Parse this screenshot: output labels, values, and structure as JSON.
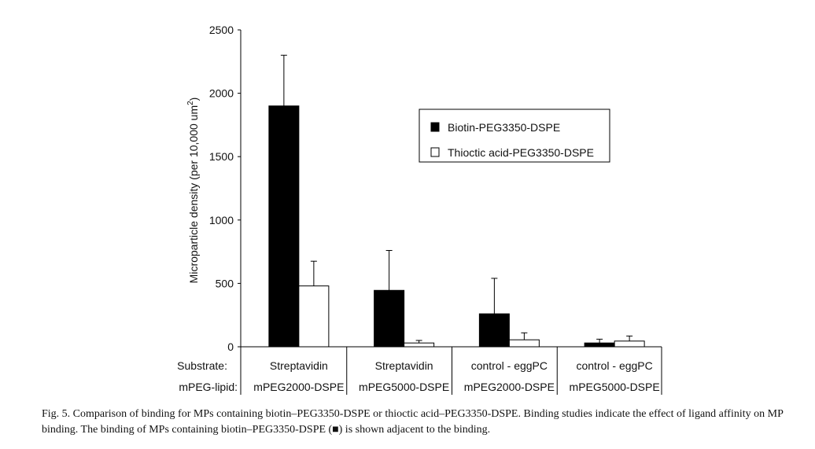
{
  "chart_data": {
    "type": "bar",
    "title": "",
    "ylabel": "Microparticle density (per 10,000 um²)",
    "ylabel_main": "Microparticle density (per 10,000 um",
    "ylabel_sup": "2",
    "ylabel_end": ")",
    "ylim": [
      0,
      2500
    ],
    "yticks": [
      0,
      500,
      1000,
      1500,
      2000,
      2500
    ],
    "row_labels": {
      "substrate": "Substrate:",
      "lipid": "mPEG-lipid:"
    },
    "categories": [
      {
        "substrate": "Streptavidin",
        "lipid": "mPEG2000-DSPE"
      },
      {
        "substrate": "Streptavidin",
        "lipid": "mPEG5000-DSPE"
      },
      {
        "substrate": "control - eggPC",
        "lipid": "mPEG2000-DSPE"
      },
      {
        "substrate": "control - eggPC",
        "lipid": "mPEG5000-DSPE"
      }
    ],
    "series": [
      {
        "name": "Biotin-PEG3350-DSPE",
        "color": "#000000",
        "values": [
          1900,
          445,
          260,
          30
        ],
        "error_upper": [
          400,
          315,
          280,
          30
        ]
      },
      {
        "name": "Thioctic acid-PEG3350-DSPE",
        "color": "#ffffff",
        "values": [
          480,
          30,
          55,
          45
        ],
        "error_upper": [
          195,
          20,
          55,
          40
        ]
      }
    ],
    "legend_position": "top-right",
    "grid": false
  },
  "caption": {
    "text": "Fig. 5. Comparison of binding for MPs containing biotin–PEG3350-DSPE or thioctic acid–PEG3350-DSPE. Binding studies indicate the effect of ligand affinity on MP binding. The binding of MPs containing biotin–PEG3350-DSPE (■) is shown adjacent to the binding."
  }
}
